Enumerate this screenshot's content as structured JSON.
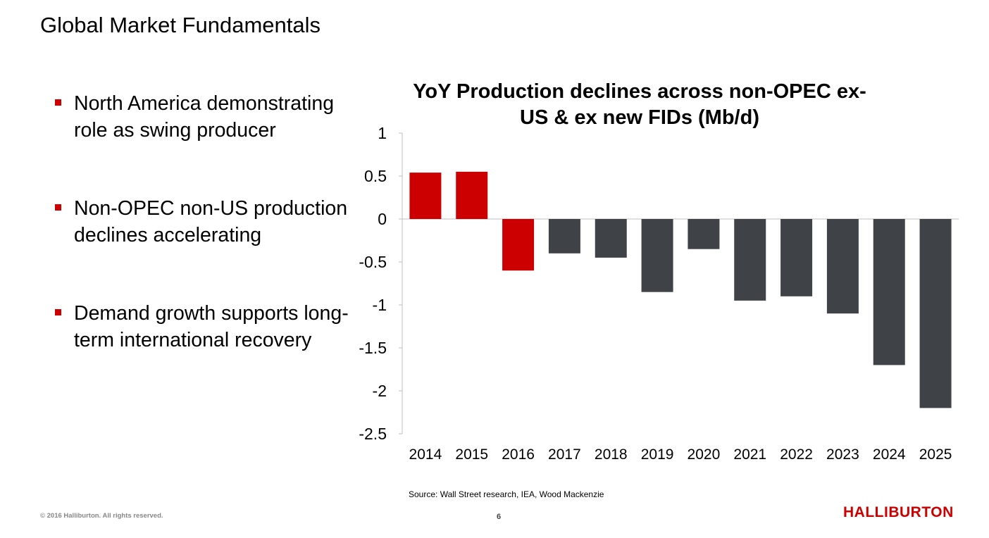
{
  "slide": {
    "title": "Global Market Fundamentals",
    "bullets": [
      "North America demonstrating role as swing producer",
      "Non-OPEC non-US production declines accelerating",
      "Demand growth supports long-term international recovery"
    ],
    "source": "Source: Wall Street research, IEA, Wood Mackenzie",
    "copyright": "© 2016 Halliburton. All rights reserved.",
    "page_number": "6",
    "logo_text": "HALLIBURTON"
  },
  "colors": {
    "highlight": "#cc0000",
    "bar_default": "#3f4246",
    "bullet": "#cc0000",
    "logo": "#cc0000"
  },
  "chart_data": {
    "type": "bar",
    "title": "YoY Production declines across non-OPEC ex-US & ex new FIDs (Mb/d)",
    "categories": [
      "2014",
      "2015",
      "2016",
      "2017",
      "2018",
      "2019",
      "2020",
      "2021",
      "2022",
      "2023",
      "2024",
      "2025"
    ],
    "values": [
      0.54,
      0.55,
      -0.6,
      -0.4,
      -0.45,
      -0.85,
      -0.35,
      -0.95,
      -0.9,
      -1.1,
      -1.7,
      -2.2
    ],
    "highlighted": [
      "2014",
      "2015",
      "2016"
    ],
    "ylim": [
      -2.5,
      1
    ],
    "yticks": [
      1,
      0.5,
      0,
      -0.5,
      -1,
      -1.5,
      -2,
      -2.5
    ],
    "ytick_labels": [
      "1",
      "0.5",
      "0",
      "-0.5",
      "-1",
      "-1.5",
      "-2",
      "-2.5"
    ],
    "xlabel": "",
    "ylabel": "",
    "grid": false,
    "legend": false
  }
}
